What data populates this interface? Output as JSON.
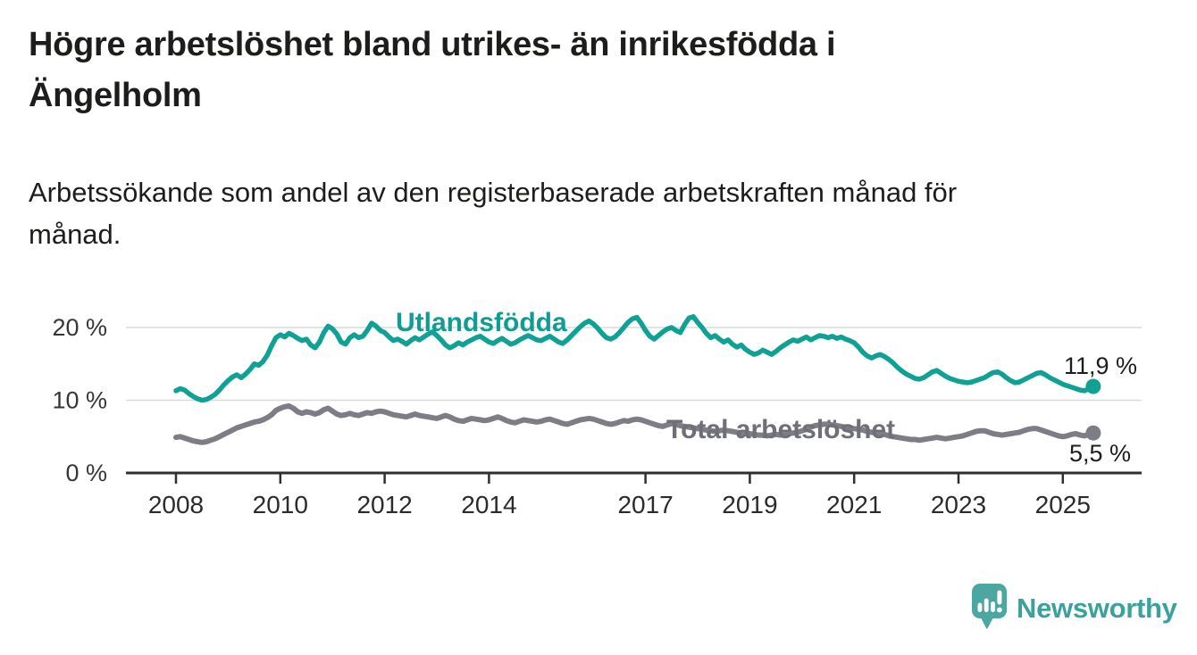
{
  "header": {
    "title_line1": "Högre arbetslöshet bland utrikes- än inrikesfödda i",
    "title_line2": "Ängelholm",
    "subtitle_line1": "Arbetssökande som andel av den registerbaserade arbetskraften månad för",
    "subtitle_line2": "månad."
  },
  "branding": {
    "name": "Newsworthy",
    "logo_icon": "speech-bubble-bar-chart",
    "mark_color": "#4CA6A1",
    "text_color": "#3BA19D"
  },
  "chart_data": {
    "type": "line",
    "title": "Högre arbetslöshet bland utrikes- än inrikesfödda i Ängelholm",
    "subtitle": "Arbetssökande som andel av den registerbaserade arbetskraften månad för månad.",
    "x_start_year": 2008,
    "x_interval": "monthly",
    "x_end": "2025-08",
    "grid": true,
    "legend_position": "inline-labels",
    "x_axis": {
      "ticks": [
        2008,
        2010,
        2012,
        2014,
        2017,
        2019,
        2021,
        2023,
        2025
      ],
      "labels": [
        "2008",
        "2010",
        "2012",
        "2014",
        "2017",
        "2019",
        "2021",
        "2023",
        "2025"
      ],
      "range": [
        2007.4,
        2026.5
      ]
    },
    "y_axis": {
      "ticks": [
        0,
        10,
        20
      ],
      "labels": [
        "0 %",
        "10 %",
        "20 %"
      ],
      "range": [
        0,
        23.3
      ]
    },
    "series": [
      {
        "id": "utlandsfodda",
        "name": "Utlandsfödda",
        "color": "#10A195",
        "label_color": "#0E9D90",
        "end_value": 11.9,
        "end_label": "11,9 %",
        "values": [
          11.3,
          11.6,
          11.4,
          10.9,
          10.5,
          10.2,
          10.0,
          10.1,
          10.4,
          10.8,
          11.4,
          12.1,
          12.7,
          13.2,
          13.5,
          13.1,
          13.6,
          14.2,
          15.0,
          14.8,
          15.3,
          16.2,
          17.5,
          18.6,
          19.0,
          18.7,
          19.2,
          18.9,
          18.5,
          18.2,
          18.4,
          17.6,
          17.2,
          18.0,
          19.3,
          20.2,
          19.8,
          19.1,
          18.0,
          17.7,
          18.6,
          19.0,
          18.6,
          18.8,
          19.6,
          20.6,
          20.2,
          19.6,
          19.3,
          18.7,
          18.2,
          18.4,
          18.1,
          17.7,
          18.2,
          18.6,
          18.3,
          18.7,
          19.1,
          19.4,
          18.9,
          18.3,
          17.6,
          17.2,
          17.5,
          17.9,
          17.6,
          18.0,
          18.3,
          18.6,
          18.8,
          18.4,
          18.0,
          17.8,
          18.2,
          18.5,
          18.1,
          17.7,
          17.9,
          18.3,
          18.6,
          18.9,
          18.6,
          18.3,
          18.2,
          18.5,
          18.8,
          18.4,
          18.0,
          17.8,
          18.3,
          18.9,
          19.5,
          20.1,
          20.6,
          20.9,
          20.5,
          19.9,
          19.2,
          18.6,
          18.4,
          18.7,
          19.3,
          20.0,
          20.7,
          21.2,
          21.4,
          20.6,
          19.6,
          18.8,
          18.4,
          18.9,
          19.4,
          19.8,
          20.0,
          19.6,
          19.3,
          20.4,
          21.3,
          21.5,
          20.7,
          20.0,
          19.2,
          18.6,
          18.9,
          18.4,
          18.0,
          18.3,
          17.7,
          17.3,
          17.6,
          17.0,
          16.6,
          16.3,
          16.5,
          16.9,
          16.6,
          16.3,
          16.7,
          17.2,
          17.6,
          18.0,
          18.3,
          18.1,
          18.4,
          18.7,
          18.3,
          18.6,
          18.9,
          18.8,
          18.6,
          18.8,
          18.5,
          18.7,
          18.4,
          18.2,
          17.9,
          17.3,
          16.6,
          16.1,
          15.8,
          16.1,
          16.3,
          16.0,
          15.6,
          15.1,
          14.5,
          14.0,
          13.6,
          13.3,
          13.0,
          12.9,
          13.1,
          13.5,
          13.9,
          14.1,
          13.7,
          13.3,
          13.0,
          12.8,
          12.6,
          12.5,
          12.4,
          12.5,
          12.7,
          12.9,
          13.1,
          13.5,
          13.8,
          13.9,
          13.6,
          13.1,
          12.7,
          12.4,
          12.5,
          12.8,
          13.1,
          13.4,
          13.7,
          13.8,
          13.5,
          13.1,
          12.8,
          12.5,
          12.2,
          12.0,
          11.8,
          11.6,
          11.4,
          11.3,
          11.6,
          11.9
        ]
      },
      {
        "id": "total-arbetsloshet",
        "name": "Total arbetslöshet",
        "color": "#7D7D85",
        "label_color": "#6F6F79",
        "end_value": 5.5,
        "end_label": "5,5 %",
        "values": [
          4.9,
          5.0,
          4.8,
          4.6,
          4.4,
          4.3,
          4.2,
          4.3,
          4.5,
          4.7,
          5.0,
          5.3,
          5.6,
          5.9,
          6.2,
          6.4,
          6.6,
          6.8,
          7.0,
          7.1,
          7.3,
          7.6,
          8.0,
          8.6,
          8.9,
          9.1,
          9.2,
          8.9,
          8.4,
          8.2,
          8.4,
          8.3,
          8.1,
          8.3,
          8.7,
          8.9,
          8.5,
          8.1,
          7.9,
          8.0,
          8.2,
          8.0,
          7.9,
          8.1,
          8.3,
          8.2,
          8.4,
          8.5,
          8.4,
          8.2,
          8.0,
          7.9,
          7.8,
          7.7,
          7.9,
          8.1,
          7.9,
          7.8,
          7.7,
          7.6,
          7.5,
          7.7,
          7.9,
          7.7,
          7.4,
          7.2,
          7.1,
          7.3,
          7.5,
          7.4,
          7.3,
          7.2,
          7.3,
          7.5,
          7.7,
          7.5,
          7.2,
          7.0,
          6.9,
          7.1,
          7.3,
          7.2,
          7.1,
          7.0,
          7.1,
          7.3,
          7.4,
          7.2,
          7.0,
          6.8,
          6.7,
          6.9,
          7.1,
          7.3,
          7.4,
          7.5,
          7.4,
          7.2,
          7.0,
          6.8,
          6.7,
          6.8,
          7.0,
          7.2,
          7.1,
          7.3,
          7.4,
          7.3,
          7.1,
          6.9,
          6.7,
          6.5,
          6.4,
          6.6,
          6.8,
          6.7,
          6.5,
          6.4,
          6.3,
          6.2,
          6.1,
          6.0,
          5.9,
          5.8,
          5.7,
          5.8,
          5.9,
          5.8,
          5.7,
          5.6,
          5.5,
          5.4,
          5.4,
          5.3,
          5.2,
          5.2,
          5.1,
          5.2,
          5.3,
          5.2,
          5.3,
          5.4,
          5.5,
          5.6,
          5.8,
          6.0,
          6.3,
          6.5,
          6.6,
          6.7,
          6.7,
          6.6,
          6.5,
          6.4,
          6.3,
          6.2,
          6.1,
          6.0,
          5.9,
          5.7,
          5.6,
          5.5,
          5.4,
          5.3,
          5.1,
          5.0,
          4.9,
          4.8,
          4.7,
          4.6,
          4.6,
          4.5,
          4.6,
          4.7,
          4.8,
          4.9,
          4.8,
          4.7,
          4.8,
          4.9,
          5.0,
          5.1,
          5.3,
          5.5,
          5.7,
          5.8,
          5.8,
          5.6,
          5.4,
          5.3,
          5.2,
          5.3,
          5.4,
          5.5,
          5.6,
          5.8,
          6.0,
          6.1,
          6.1,
          5.9,
          5.7,
          5.5,
          5.3,
          5.1,
          5.0,
          5.1,
          5.3,
          5.4,
          5.2,
          5.1,
          5.3,
          5.5
        ]
      }
    ]
  }
}
